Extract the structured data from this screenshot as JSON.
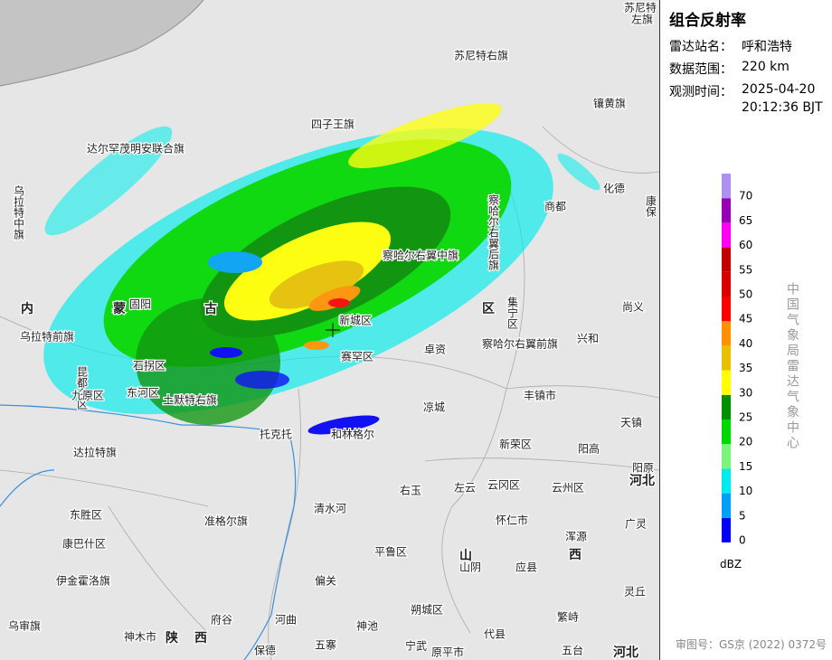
{
  "panel": {
    "title": "组合反射率",
    "station_label": "雷达站名：",
    "station": "呼和浩特",
    "range_label": "数据范围：",
    "range": "220 km",
    "time_label": "观测时间：",
    "date": "2025-04-20",
    "time": "20:12:36 BJT"
  },
  "legend": {
    "ticks": [
      0,
      5,
      10,
      15,
      20,
      25,
      30,
      35,
      40,
      45,
      50,
      55,
      60,
      65,
      70
    ],
    "colors": [
      "#0000f6",
      "#01a0f6",
      "#00ecec",
      "#7af57a",
      "#00d800",
      "#019000",
      "#ffff00",
      "#e7c000",
      "#ff9000",
      "#ff0000",
      "#d60000",
      "#c00000",
      "#ff00f0",
      "#9600b4",
      "#ad90f0"
    ],
    "unit": "dBZ"
  },
  "agency": "中国气象局雷达气象中心",
  "footer": "审图号：GS京 (2022) 0372号",
  "map": {
    "labels": [
      "苏尼特",
      "左旗",
      "苏尼特右旗",
      "四子王旗",
      "达尔罕茂明安联合旗",
      "镶黄旗",
      "化德",
      "商都",
      "康保",
      "察哈尔右翼后旗",
      "乌拉特中旗",
      "察哈尔右翼中旗",
      "内",
      "蒙",
      "古",
      "区",
      "固阳",
      "乌拉特前旗",
      "集宁区",
      "尚义",
      "兴和",
      "察哈尔右翼前旗",
      "卓资",
      "新城区",
      "赛罕区",
      "石拐区",
      "昆都仑区",
      "九原区",
      "东河区",
      "土默特右旗",
      "凉城",
      "丰镇市",
      "天镇",
      "托克托",
      "和林格尔",
      "达拉特旗",
      "新荣区",
      "阳高",
      "阳原",
      "右玉",
      "左云",
      "云冈区",
      "云州区",
      "河北",
      "清水河",
      "东胜区",
      "准格尔旗",
      "怀仁市",
      "浑源",
      "广灵",
      "康巴什区",
      "平鲁区",
      "山",
      "西",
      "山阴",
      "应县",
      "伊金霍洛旗",
      "偏关",
      "朔城区",
      "灵丘",
      "繁峙",
      "乌审旗",
      "府谷",
      "河曲",
      "神池",
      "神木市",
      "陕",
      "西",
      "保德",
      "五寨",
      "宁武",
      "原平市",
      "代县",
      "五台",
      "河北"
    ]
  }
}
